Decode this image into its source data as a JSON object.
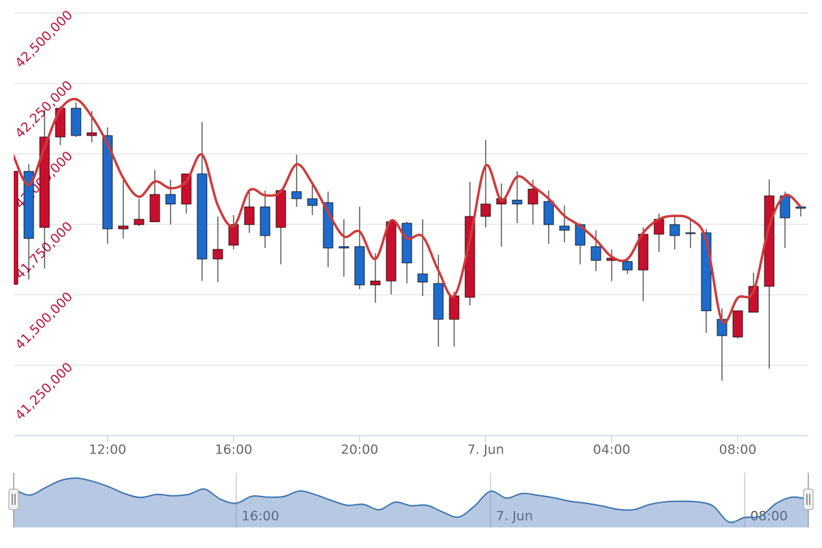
{
  "chart_data": {
    "type": "candlestick",
    "categories": [
      "09:00",
      "09:30",
      "10:00",
      "10:30",
      "11:00",
      "11:30",
      "12:00",
      "12:30",
      "13:00",
      "13:30",
      "14:00",
      "14:30",
      "15:00",
      "15:30",
      "16:00",
      "16:30",
      "17:00",
      "17:30",
      "18:00",
      "18:30",
      "19:00",
      "19:30",
      "20:00",
      "20:30",
      "21:00",
      "21:30",
      "22:00",
      "22:30",
      "23:00",
      "23:30",
      "00:00",
      "00:30",
      "01:00",
      "01:30",
      "02:00",
      "02:30",
      "03:00",
      "03:30",
      "04:00",
      "04:30",
      "05:00",
      "05:30",
      "06:00",
      "06:30",
      "07:00",
      "07:30",
      "08:00",
      "08:30",
      "09:00",
      "09:30",
      "10:00"
    ],
    "open": [
      41537000,
      41938000,
      41739000,
      42060000,
      42162000,
      42065000,
      42065000,
      41734000,
      41749000,
      41759000,
      41856000,
      41822000,
      41929000,
      41627000,
      41676000,
      41749000,
      41812000,
      41739000,
      41866000,
      41841000,
      41827000,
      41671000,
      41671000,
      41535000,
      41549000,
      41754000,
      41574000,
      41540000,
      41413000,
      41491000,
      41778000,
      41822000,
      41836000,
      41822000,
      41831000,
      41744000,
      41749000,
      41671000,
      41622000,
      41618000,
      41588000,
      41715000,
      41749000,
      41720000,
      41720000,
      41413000,
      41350000,
      41438000,
      41530000,
      41851000,
      41812000
    ],
    "high": [
      41938000,
      41963000,
      42157000,
      42169000,
      42182000,
      42152000,
      42094000,
      41919000,
      41841000,
      41943000,
      41909000,
      41929000,
      42113000,
      41778000,
      41783000,
      41875000,
      41870000,
      41875000,
      41997000,
      41890000,
      41866000,
      41768000,
      41812000,
      41647000,
      41763000,
      41759000,
      41768000,
      41642000,
      41511000,
      41900000,
      42050000,
      41895000,
      41938000,
      41909000,
      41870000,
      41817000,
      41754000,
      41729000,
      41661000,
      41627000,
      41739000,
      41788000,
      41783000,
      41763000,
      41734000,
      41452000,
      41443000,
      41579000,
      41909000,
      41866000,
      41812000
    ],
    "low": [
      41537000,
      41554000,
      41593000,
      42031000,
      42060000,
      42041000,
      41681000,
      41700000,
      41744000,
      41759000,
      41749000,
      41788000,
      41549000,
      41545000,
      41661000,
      41720000,
      41666000,
      41608000,
      41812000,
      41783000,
      41598000,
      41564000,
      41520000,
      41472000,
      41501000,
      41540000,
      41496000,
      41316000,
      41316000,
      41462000,
      41739000,
      41671000,
      41754000,
      41749000,
      41681000,
      41686000,
      41608000,
      41584000,
      41549000,
      41574000,
      41477000,
      41652000,
      41661000,
      41666000,
      41365000,
      41195000,
      41345000,
      41438000,
      41238000,
      41666000,
      41778000
    ],
    "close": [
      41938000,
      41700000,
      42060000,
      42162000,
      42065000,
      42075000,
      41734000,
      41744000,
      41768000,
      41856000,
      41822000,
      41929000,
      41627000,
      41661000,
      41749000,
      41812000,
      41710000,
      41870000,
      41841000,
      41817000,
      41666000,
      41666000,
      41535000,
      41549000,
      41759000,
      41613000,
      41545000,
      41413000,
      41496000,
      41778000,
      41822000,
      41841000,
      41822000,
      41875000,
      41749000,
      41729000,
      41676000,
      41622000,
      41630000,
      41588000,
      41715000,
      41768000,
      41710000,
      41717000,
      41443000,
      41355000,
      41443000,
      41530000,
      41851000,
      41773000,
      41807000
    ],
    "up_color": "#c8102e",
    "down_color": "#1f6bcc",
    "line": {
      "color": "#d03a3a",
      "values": [
        41997000,
        41890000,
        42024000,
        42157000,
        42194000,
        42133000,
        42036000,
        41914000,
        41848000,
        41902000,
        41878000,
        41902000,
        41997000,
        41817000,
        41744000,
        41870000,
        41853000,
        41866000,
        41963000,
        41895000,
        41793000,
        41707000,
        41724000,
        41627000,
        41763000,
        41700000,
        41707000,
        41586000,
        41496000,
        41695000,
        41958000,
        41836000,
        41919000,
        41885000,
        41841000,
        41780000,
        41744000,
        41695000,
        41635000,
        41627000,
        41720000,
        41768000,
        41780000,
        41768000,
        41695000,
        41408000,
        41489000,
        41513000,
        41744000,
        41853000,
        41812000
      ]
    },
    "ylim": [
      41000000,
      42500000
    ],
    "yticks": [
      {
        "value": 41250000,
        "label": "41,250,000"
      },
      {
        "value": 41500000,
        "label": "41,500,000"
      },
      {
        "value": 41750000,
        "label": "41,750,000"
      },
      {
        "value": 42000000,
        "label": "42,000,000"
      },
      {
        "value": 42250000,
        "label": "42,250,000"
      },
      {
        "value": 42500000,
        "label": "42,500,000"
      }
    ],
    "xticks": [
      "12:00",
      "16:00",
      "20:00",
      {
        "value": "00:00",
        "label": "7. Jun"
      },
      "04:00",
      "08:00"
    ],
    "grid": true,
    "navigator": {
      "xticks": [
        "16:00",
        {
          "value": "00:00",
          "label": "7. Jun"
        },
        "08:00"
      ]
    }
  }
}
